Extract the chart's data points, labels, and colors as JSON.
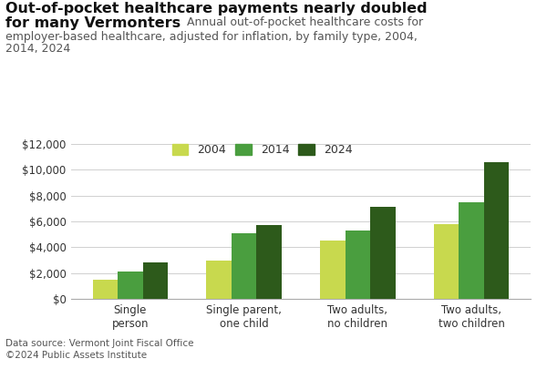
{
  "title_bold": "Out-of-pocket healthcare payments nearly doubled\nfor many Vermonters",
  "title_regular": "Annual out-of-pocket healthcare costs for\nemployer-based healthcare, adjusted for inflation, by family type, 2004,\n2014, 2024",
  "categories": [
    "Single\nperson",
    "Single parent,\none child",
    "Two adults,\nno children",
    "Two adults,\ntwo children"
  ],
  "years": [
    "2004",
    "2014",
    "2024"
  ],
  "values": {
    "2004": [
      1500,
      3000,
      4500,
      5800
    ],
    "2014": [
      2100,
      5100,
      5300,
      7500
    ],
    "2024": [
      2800,
      5700,
      7100,
      10600
    ]
  },
  "colors": {
    "2004": "#c8d94e",
    "2014": "#4a9e3f",
    "2024": "#2d5a1b"
  },
  "ylim": [
    0,
    12000
  ],
  "yticks": [
    0,
    2000,
    4000,
    6000,
    8000,
    10000,
    12000
  ],
  "data_source": "Data source: Vermont Joint Fiscal Office\n©2024 Public Assets Institute",
  "background_color": "#ffffff",
  "grid_color": "#d0d0d0",
  "bar_width": 0.22
}
